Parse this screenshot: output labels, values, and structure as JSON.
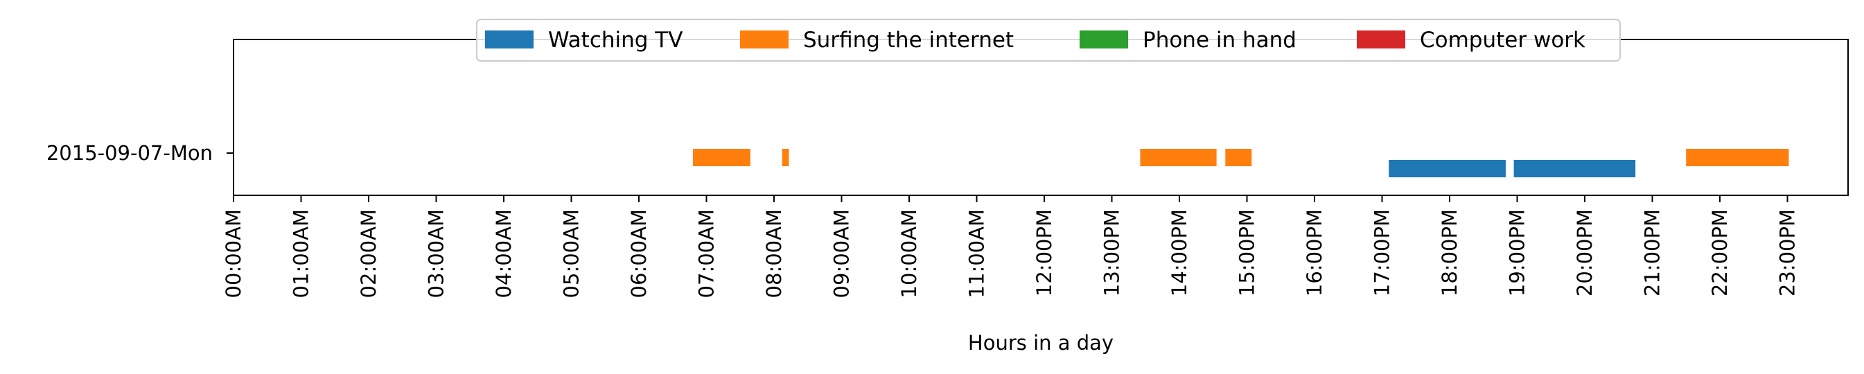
{
  "chart_data": {
    "type": "bar",
    "orientation": "horizontal",
    "title": "",
    "xlabel": "Hours in a day",
    "ylabel": "",
    "xlim": [
      0,
      24
    ],
    "x_ticks": [
      {
        "value": 0,
        "label": "00:00AM"
      },
      {
        "value": 1,
        "label": "01:00AM"
      },
      {
        "value": 2,
        "label": "02:00AM"
      },
      {
        "value": 3,
        "label": "03:00AM"
      },
      {
        "value": 4,
        "label": "04:00AM"
      },
      {
        "value": 5,
        "label": "05:00AM"
      },
      {
        "value": 6,
        "label": "06:00AM"
      },
      {
        "value": 7,
        "label": "07:00AM"
      },
      {
        "value": 8,
        "label": "08:00AM"
      },
      {
        "value": 9,
        "label": "09:00AM"
      },
      {
        "value": 10,
        "label": "10:00AM"
      },
      {
        "value": 11,
        "label": "11:00AM"
      },
      {
        "value": 12,
        "label": "12:00PM"
      },
      {
        "value": 13,
        "label": "13:00PM"
      },
      {
        "value": 14,
        "label": "14:00PM"
      },
      {
        "value": 15,
        "label": "15:00PM"
      },
      {
        "value": 16,
        "label": "16:00PM"
      },
      {
        "value": 17,
        "label": "17:00PM"
      },
      {
        "value": 18,
        "label": "18:00PM"
      },
      {
        "value": 19,
        "label": "19:00PM"
      },
      {
        "value": 20,
        "label": "20:00PM"
      },
      {
        "value": 21,
        "label": "21:00PM"
      },
      {
        "value": 22,
        "label": "22:00PM"
      },
      {
        "value": 23,
        "label": "23:00PM"
      }
    ],
    "categories": [
      "2015-09-07-Mon"
    ],
    "legend": {
      "position": "upper-center",
      "columns": 4
    },
    "grid": false,
    "series": [
      {
        "name": "Watching TV",
        "color": "#1f77b4",
        "lane": "below",
        "intervals": [
          [
            17.1,
            18.83
          ],
          [
            18.95,
            20.75
          ]
        ]
      },
      {
        "name": "Surfing the internet",
        "color": "#ff7f0e",
        "lane": "above",
        "intervals": [
          [
            6.8,
            7.65
          ],
          [
            8.12,
            8.22
          ],
          [
            13.42,
            14.55
          ],
          [
            14.68,
            15.07
          ],
          [
            21.5,
            23.02
          ]
        ]
      },
      {
        "name": "Phone in hand",
        "color": "#2ca02c",
        "lane": "above",
        "intervals": []
      },
      {
        "name": "Computer work",
        "color": "#d62728",
        "lane": "above",
        "intervals": []
      }
    ]
  }
}
